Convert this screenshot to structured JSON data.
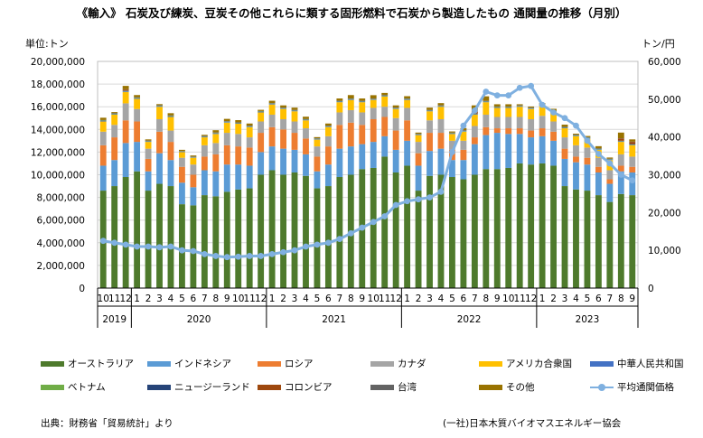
{
  "title": "《輸入》 石炭及び練炭、豆炭その他これらに類する固形燃料で石炭から製造したもの 通関量の推移（月別）",
  "left_unit": "単位:トン",
  "right_unit": "トン/円",
  "source": "出典：財務省「貿易統計」より",
  "credit": "(一社)日本木質バイオマスエネルギー協会",
  "colors": {
    "australia": "#4e7a2c",
    "indonesia": "#5b9bd5",
    "russia": "#ed7d31",
    "canada": "#a5a5a5",
    "usa": "#ffc000",
    "china": "#4472c4",
    "vietnam": "#70ad47",
    "newzealand": "#264478",
    "colombia": "#9e480e",
    "taiwan": "#636363",
    "other": "#997300",
    "price": "#7fb0e0"
  },
  "chart_data": {
    "type": "bar",
    "stacked": true,
    "title": "《輸入》 石炭及び練炭、豆炭その他これらに類する固形燃料で石炭から製造したもの 通関量の推移（月別）",
    "ylabel": "単位:トン",
    "y2label": "トン/円",
    "ylim": [
      0,
      20000000
    ],
    "y2lim": [
      0,
      60000
    ],
    "yticks": [
      "0",
      "2,000,000",
      "4,000,000",
      "6,000,000",
      "8,000,000",
      "10,000,000",
      "12,000,000",
      "14,000,000",
      "16,000,000",
      "18,000,000",
      "20,000,000"
    ],
    "y2ticks": [
      "0",
      "10,000",
      "20,000",
      "30,000",
      "40,000",
      "50,000",
      "60,000"
    ],
    "grid": true,
    "legend_position": "bottom",
    "categories": [
      "10",
      "11",
      "12",
      "1",
      "2",
      "3",
      "4",
      "5",
      "6",
      "7",
      "8",
      "9",
      "10",
      "11",
      "12",
      "1",
      "2",
      "3",
      "4",
      "5",
      "6",
      "7",
      "8",
      "9",
      "10",
      "11",
      "12",
      "1",
      "2",
      "3",
      "4",
      "5",
      "6",
      "7",
      "8",
      "9",
      "10",
      "11",
      "12",
      "1",
      "2",
      "3",
      "4",
      "5",
      "6",
      "7",
      "8",
      "9"
    ],
    "years": [
      {
        "label": "2019",
        "start": 0,
        "count": 3
      },
      {
        "label": "2020",
        "start": 3,
        "count": 12
      },
      {
        "label": "2021",
        "start": 15,
        "count": 12
      },
      {
        "label": "2022",
        "start": 27,
        "count": 12
      },
      {
        "label": "2023",
        "start": 39,
        "count": 9
      }
    ],
    "series": [
      {
        "name": "オーストラリア",
        "key": "australia",
        "values": [
          8600000,
          9000000,
          9800000,
          10300000,
          8600000,
          9200000,
          9000000,
          7400000,
          7300000,
          8200000,
          8100000,
          8500000,
          8700000,
          8800000,
          10000000,
          10400000,
          10000000,
          10200000,
          9900000,
          8800000,
          9000000,
          9800000,
          10000000,
          10500000,
          10600000,
          11600000,
          10200000,
          10800000,
          8600000,
          9900000,
          10000000,
          9800000,
          9600000,
          10000000,
          10500000,
          10500000,
          10600000,
          11000000,
          10900000,
          11000000,
          10800000,
          9000000,
          8700000,
          8600000,
          8200000,
          7600000,
          8300000,
          8200000
        ]
      },
      {
        "name": "インドネシア",
        "key": "indonesia",
        "values": [
          2200000,
          2300000,
          3000000,
          2600000,
          1700000,
          2700000,
          2300000,
          1900000,
          1600000,
          2200000,
          2200000,
          2400000,
          2200000,
          2000000,
          2000000,
          2100000,
          2300000,
          2000000,
          1900000,
          1500000,
          1900000,
          2500000,
          2500000,
          2200000,
          2300000,
          1800000,
          2000000,
          2200000,
          2200000,
          2200000,
          2300000,
          1500000,
          1700000,
          2700000,
          3000000,
          3200000,
          3000000,
          2600000,
          2400000,
          2400000,
          2200000,
          2400000,
          2400000,
          2300000,
          2000000,
          1600000,
          2000000,
          2000000
        ]
      },
      {
        "name": "ロシア",
        "key": "russia",
        "values": [
          1800000,
          2000000,
          2000000,
          1800000,
          1100000,
          1900000,
          1600000,
          1400000,
          1100000,
          1200000,
          1500000,
          1700000,
          1600000,
          1600000,
          1700000,
          1700000,
          1700000,
          1500000,
          1400000,
          1300000,
          1600000,
          2100000,
          2100000,
          1700000,
          2000000,
          1700000,
          1700000,
          1800000,
          1100000,
          1600000,
          1400000,
          900000,
          900000,
          600000,
          700000,
          400000,
          500000,
          500000,
          600000,
          700000,
          800000,
          900000,
          500000,
          600000,
          500000,
          400000,
          500000,
          500000
        ]
      },
      {
        "name": "カナダ",
        "key": "canada",
        "values": [
          1200000,
          1100000,
          1500000,
          1100000,
          900000,
          1100000,
          1000000,
          800000,
          900000,
          1000000,
          1000000,
          1100000,
          1100000,
          900000,
          1000000,
          1100000,
          900000,
          1000000,
          900000,
          900000,
          900000,
          1100000,
          1100000,
          1100000,
          1000000,
          900000,
          1100000,
          1100000,
          1000000,
          1100000,
          1200000,
          800000,
          800000,
          1000000,
          1100000,
          1000000,
          1000000,
          1000000,
          1000000,
          1100000,
          900000,
          1000000,
          1000000,
          900000,
          800000,
          800000,
          1000000,
          900000
        ]
      },
      {
        "name": "アメリカ合衆国",
        "key": "usa",
        "values": [
          900000,
          900000,
          1000000,
          900000,
          600000,
          1100000,
          1200000,
          500000,
          600000,
          700000,
          800000,
          900000,
          900000,
          900000,
          800000,
          900000,
          900000,
          900000,
          700000,
          600000,
          800000,
          900000,
          900000,
          900000,
          700000,
          900000,
          800000,
          700000,
          600000,
          800000,
          1100000,
          600000,
          800000,
          1000000,
          1100000,
          800000,
          800000,
          900000,
          900000,
          900000,
          800000,
          800000,
          800000,
          800000,
          700000,
          900000,
          1100000,
          1000000
        ]
      },
      {
        "name": "中華人民共和国",
        "key": "china",
        "values": [
          50000,
          50000,
          60000,
          50000,
          40000,
          50000,
          50000,
          40000,
          40000,
          40000,
          50000,
          50000,
          40000,
          40000,
          50000,
          50000,
          40000,
          40000,
          40000,
          40000,
          40000,
          50000,
          50000,
          50000,
          40000,
          40000,
          40000,
          50000,
          40000,
          40000,
          40000,
          40000,
          40000,
          40000,
          40000,
          40000,
          40000,
          40000,
          40000,
          40000,
          40000,
          40000,
          40000,
          40000,
          40000,
          40000,
          40000,
          40000
        ]
      },
      {
        "name": "ベトナム",
        "key": "vietnam",
        "values": [
          30000,
          30000,
          30000,
          30000,
          30000,
          30000,
          30000,
          20000,
          20000,
          30000,
          30000,
          30000,
          30000,
          30000,
          30000,
          30000,
          30000,
          30000,
          30000,
          30000,
          30000,
          30000,
          30000,
          30000,
          30000,
          30000,
          30000,
          30000,
          30000,
          30000,
          30000,
          30000,
          30000,
          30000,
          30000,
          30000,
          30000,
          30000,
          30000,
          30000,
          30000,
          30000,
          30000,
          30000,
          30000,
          30000,
          30000,
          30000
        ]
      },
      {
        "name": "ニュージーランド",
        "key": "newzealand",
        "values": [
          30000,
          30000,
          30000,
          30000,
          30000,
          30000,
          30000,
          20000,
          20000,
          30000,
          30000,
          30000,
          30000,
          30000,
          30000,
          30000,
          30000,
          30000,
          30000,
          30000,
          30000,
          30000,
          30000,
          30000,
          30000,
          30000,
          30000,
          30000,
          30000,
          30000,
          30000,
          30000,
          30000,
          30000,
          30000,
          30000,
          30000,
          30000,
          30000,
          30000,
          30000,
          30000,
          30000,
          30000,
          30000,
          30000,
          30000,
          30000
        ]
      },
      {
        "name": "コロンビア",
        "key": "colombia",
        "values": [
          0,
          0,
          100000,
          0,
          0,
          0,
          0,
          0,
          0,
          0,
          0,
          0,
          0,
          0,
          0,
          0,
          0,
          0,
          0,
          0,
          0,
          0,
          0,
          0,
          0,
          0,
          0,
          0,
          0,
          0,
          0,
          0,
          0,
          200000,
          0,
          0,
          0,
          0,
          0,
          0,
          0,
          0,
          0,
          0,
          0,
          0,
          200000,
          200000
        ]
      },
      {
        "name": "台湾",
        "key": "taiwan",
        "values": [
          20000,
          20000,
          20000,
          20000,
          20000,
          20000,
          20000,
          20000,
          20000,
          20000,
          20000,
          20000,
          20000,
          20000,
          20000,
          20000,
          20000,
          20000,
          20000,
          20000,
          20000,
          20000,
          20000,
          20000,
          20000,
          20000,
          20000,
          20000,
          20000,
          20000,
          20000,
          20000,
          20000,
          20000,
          20000,
          20000,
          20000,
          20000,
          20000,
          20000,
          20000,
          20000,
          20000,
          20000,
          20000,
          20000,
          20000,
          20000
        ]
      },
      {
        "name": "その他",
        "key": "other",
        "values": [
          200000,
          100000,
          300000,
          200000,
          100000,
          100000,
          200000,
          100000,
          100000,
          100000,
          200000,
          200000,
          200000,
          200000,
          100000,
          200000,
          200000,
          200000,
          200000,
          100000,
          200000,
          200000,
          300000,
          200000,
          300000,
          200000,
          200000,
          200000,
          100000,
          200000,
          200000,
          100000,
          200000,
          500000,
          400000,
          200000,
          200000,
          100000,
          100000,
          100000,
          200000,
          200000,
          100000,
          100000,
          200000,
          100000,
          500000,
          200000
        ]
      }
    ],
    "line": {
      "name": "平均通関価格",
      "axis": "y2",
      "values": [
        12500,
        12000,
        11500,
        11000,
        11000,
        10800,
        11000,
        10000,
        9800,
        9000,
        8500,
        8200,
        8300,
        8500,
        8500,
        9000,
        9500,
        10000,
        11000,
        11500,
        12000,
        13000,
        14500,
        16000,
        17500,
        19000,
        22000,
        23000,
        23500,
        24000,
        25500,
        36000,
        43000,
        47000,
        52000,
        51000,
        51000,
        53000,
        53500,
        48500,
        46500,
        45000,
        43000,
        39000,
        35500,
        33000,
        30000,
        28500
      ]
    }
  },
  "legend": [
    {
      "label": "オーストラリア",
      "key": "australia",
      "kind": "bar"
    },
    {
      "label": "インドネシア",
      "key": "indonesia",
      "kind": "bar"
    },
    {
      "label": "ロシア",
      "key": "russia",
      "kind": "bar"
    },
    {
      "label": "カナダ",
      "key": "canada",
      "kind": "bar"
    },
    {
      "label": "アメリカ合衆国",
      "key": "usa",
      "kind": "bar"
    },
    {
      "label": "中華人民共和国",
      "key": "china",
      "kind": "bar"
    },
    {
      "label": "ベトナム",
      "key": "vietnam",
      "kind": "bar"
    },
    {
      "label": "ニュージーランド",
      "key": "newzealand",
      "kind": "bar"
    },
    {
      "label": "コロンビア",
      "key": "colombia",
      "kind": "bar"
    },
    {
      "label": "台湾",
      "key": "taiwan",
      "kind": "bar"
    },
    {
      "label": "その他",
      "key": "other",
      "kind": "bar"
    },
    {
      "label": "平均通関価格",
      "key": "price",
      "kind": "line"
    }
  ]
}
